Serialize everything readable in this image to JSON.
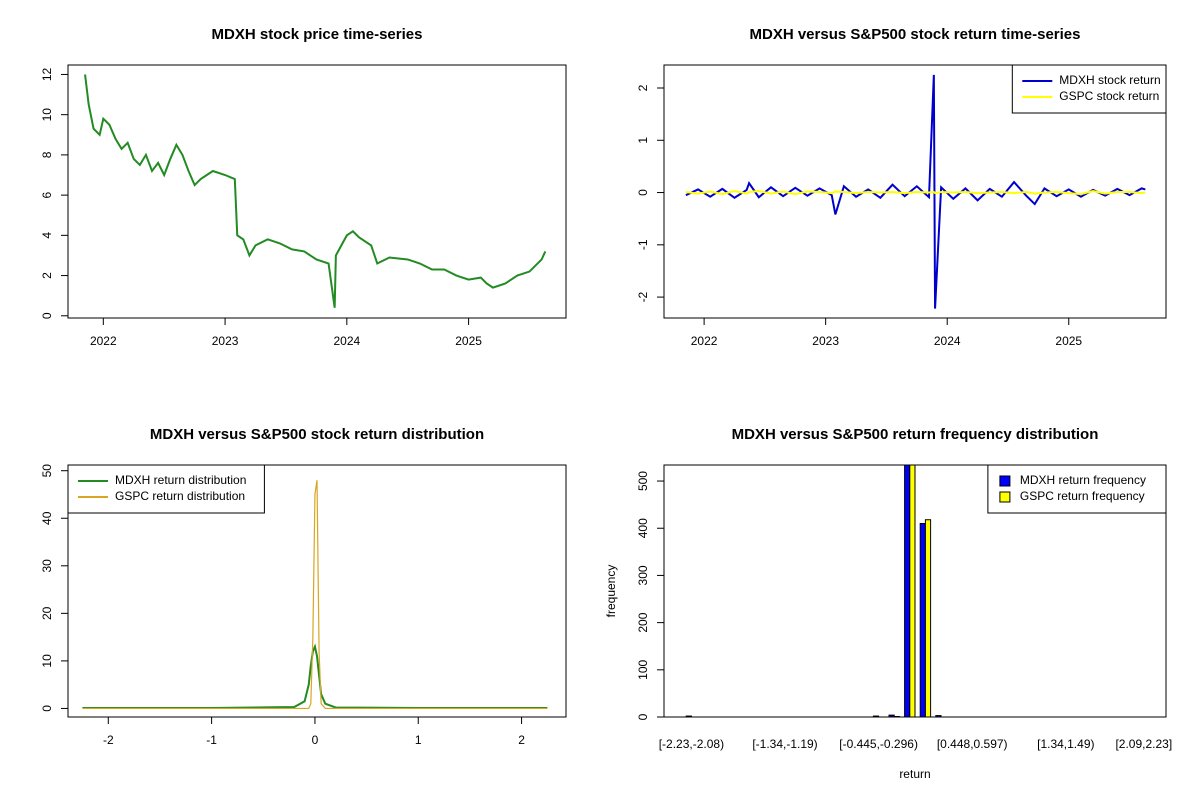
{
  "chart_data": [
    {
      "type": "line",
      "title": "MDXH stock price time-series",
      "color": "#228B22",
      "x": [
        2021.85,
        2021.88,
        2021.92,
        2021.97,
        2022.0,
        2022.05,
        2022.1,
        2022.15,
        2022.2,
        2022.25,
        2022.3,
        2022.35,
        2022.4,
        2022.45,
        2022.5,
        2022.55,
        2022.6,
        2022.65,
        2022.7,
        2022.75,
        2022.8,
        2022.85,
        2022.9,
        2023.0,
        2023.08,
        2023.1,
        2023.15,
        2023.2,
        2023.25,
        2023.35,
        2023.45,
        2023.55,
        2023.65,
        2023.75,
        2023.85,
        2023.9,
        2023.91,
        2024.0,
        2024.05,
        2024.1,
        2024.2,
        2024.25,
        2024.35,
        2024.5,
        2024.6,
        2024.7,
        2024.8,
        2024.9,
        2025.0,
        2025.1,
        2025.15,
        2025.2,
        2025.3,
        2025.4,
        2025.5,
        2025.6,
        2025.63
      ],
      "values": [
        12,
        10.5,
        9.3,
        9.0,
        9.8,
        9.5,
        8.8,
        8.3,
        8.6,
        7.8,
        7.5,
        8.0,
        7.2,
        7.6,
        7.0,
        7.8,
        8.5,
        8.0,
        7.2,
        6.5,
        6.8,
        7.0,
        7.2,
        7.0,
        6.8,
        4.0,
        3.8,
        3.0,
        3.5,
        3.8,
        3.6,
        3.3,
        3.2,
        2.8,
        2.6,
        0.4,
        3.0,
        4.0,
        4.2,
        3.9,
        3.5,
        2.6,
        2.9,
        2.8,
        2.6,
        2.3,
        2.3,
        2.0,
        1.8,
        1.9,
        1.6,
        1.4,
        1.6,
        2.0,
        2.2,
        2.8,
        3.2
      ],
      "xlim": [
        2021.71,
        2025.8
      ],
      "xticks": [
        2022,
        2023,
        2024,
        2025
      ],
      "ylim": [
        -0.11,
        12.47
      ],
      "yticks": [
        0,
        2,
        4,
        6,
        8,
        10,
        12
      ]
    },
    {
      "type": "line",
      "title": "MDXH versus S&P500 stock return time-series",
      "legend": "topright",
      "legend_marker": "line",
      "x": [
        2021.85,
        2021.95,
        2022.05,
        2022.15,
        2022.25,
        2022.35,
        2022.37,
        2022.45,
        2022.55,
        2022.65,
        2022.75,
        2022.85,
        2022.95,
        2023.05,
        2023.08,
        2023.15,
        2023.25,
        2023.35,
        2023.45,
        2023.55,
        2023.65,
        2023.75,
        2023.85,
        2023.89,
        2023.9,
        2023.95,
        2024.05,
        2024.15,
        2024.25,
        2024.35,
        2024.45,
        2024.55,
        2024.65,
        2024.72,
        2024.8,
        2024.9,
        2025.0,
        2025.1,
        2025.2,
        2025.3,
        2025.4,
        2025.5,
        2025.6,
        2025.63
      ],
      "series": [
        {
          "name": "MDXH stock return",
          "color": "#0000CD",
          "values": [
            -0.05,
            0.06,
            -0.08,
            0.07,
            -0.1,
            0.05,
            0.18,
            -0.09,
            0.1,
            -0.07,
            0.09,
            -0.06,
            0.08,
            -0.05,
            -0.42,
            0.12,
            -0.08,
            0.06,
            -0.1,
            0.15,
            -0.07,
            0.12,
            -0.09,
            2.25,
            -2.22,
            0.1,
            -0.12,
            0.08,
            -0.15,
            0.07,
            -0.08,
            0.2,
            -0.06,
            -0.22,
            0.08,
            -0.07,
            0.06,
            -0.08,
            0.05,
            -0.06,
            0.07,
            -0.05,
            0.08,
            0.06
          ]
        },
        {
          "name": "GSPC stock return",
          "color": "#FFFF00",
          "values": [
            0.01,
            -0.02,
            0.02,
            -0.03,
            0.03,
            -0.02,
            0.01,
            0.03,
            -0.02,
            0.02,
            -0.03,
            0.02,
            0.01,
            -0.01,
            0.02,
            0.01,
            -0.01,
            0.01,
            0.0,
            0.01,
            -0.01,
            0.01,
            0.0,
            0.01,
            -0.01,
            0.01,
            0.0,
            0.01,
            -0.01,
            0.0,
            0.01,
            -0.01,
            0.01,
            -0.02,
            0.0,
            0.01,
            -0.01,
            -0.03,
            0.03,
            -0.02,
            0.01,
            0.01,
            -0.01,
            0.0
          ]
        }
      ],
      "xlim": [
        2021.67,
        2025.8
      ],
      "xticks": [
        2022,
        2023,
        2024,
        2025
      ],
      "ylim": [
        -2.4,
        2.44
      ],
      "yticks": [
        -2,
        -1,
        0,
        1,
        2
      ]
    },
    {
      "type": "line",
      "title": "MDXH versus S&P500 stock return distribution",
      "legend": "topleft",
      "legend_marker": "line",
      "x": [
        -2.25,
        -1,
        -0.2,
        -0.1,
        -0.06,
        -0.04,
        -0.02,
        0,
        0.02,
        0.04,
        0.06,
        0.1,
        0.2,
        1,
        2.25
      ],
      "series": [
        {
          "name": "MDXH return distribution",
          "color": "#228B22",
          "values": [
            0.1,
            0.1,
            0.3,
            1.5,
            5,
            9,
            12,
            13,
            11,
            7,
            3,
            1,
            0.2,
            0.1,
            0.1
          ]
        },
        {
          "name": "GSPC return distribution",
          "color": "#DAA520",
          "values": [
            0,
            0,
            0,
            0,
            0,
            1,
            15,
            45,
            48,
            12,
            1,
            0,
            0,
            0,
            0
          ]
        }
      ],
      "xlim": [
        -2.39,
        2.43
      ],
      "xticks": [
        -2,
        -1,
        0,
        1,
        2
      ],
      "ylim": [
        -1.8,
        51.2
      ],
      "yticks": [
        0,
        10,
        20,
        30,
        40,
        50
      ]
    },
    {
      "type": "bar",
      "title": "MDXH versus S&P500 return frequency distribution",
      "legend": "topright",
      "legend_marker": "fill",
      "x_label": "return",
      "y_label": "frequency",
      "categories": [
        "[-2.23,-2.08)",
        null,
        null,
        null,
        null,
        null,
        "[-1.34,-1.19)",
        null,
        null,
        null,
        null,
        null,
        "[-0.445,-0.296)",
        null,
        null,
        null,
        null,
        null,
        "[0.448,0.597)",
        null,
        null,
        null,
        null,
        null,
        "[1.34,1.49)",
        null,
        null,
        null,
        null,
        "[2.09,2.23]"
      ],
      "series": [
        {
          "name": "MDXH return frequency",
          "color": "#0000FF",
          "values": [
            2,
            0,
            0,
            0,
            0,
            0,
            0,
            0,
            0,
            0,
            0,
            0,
            2,
            4,
            535,
            410,
            3,
            0,
            0,
            0,
            0,
            0,
            0,
            0,
            0,
            0,
            0,
            0,
            0,
            0
          ]
        },
        {
          "name": "GSPC return frequency",
          "color": "#FFFF00",
          "values": [
            0,
            0,
            0,
            0,
            0,
            0,
            0,
            0,
            0,
            0,
            0,
            0,
            0,
            1,
            540,
            418,
            0,
            0,
            0,
            0,
            0,
            0,
            0,
            0,
            0,
            0,
            0,
            0,
            0,
            0
          ]
        }
      ],
      "ylim": [
        0,
        534
      ],
      "yticks": [
        0,
        100,
        200,
        300,
        400,
        500
      ]
    }
  ]
}
